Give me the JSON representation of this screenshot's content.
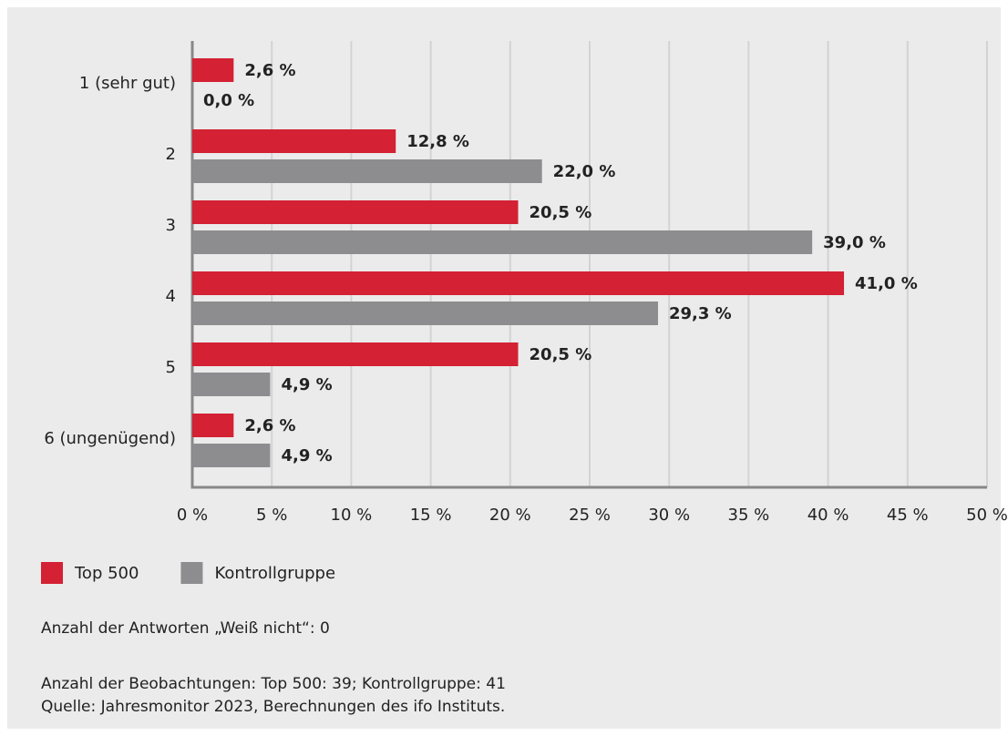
{
  "chart_data": {
    "type": "bar",
    "orientation": "horizontal",
    "categories": [
      "1 (sehr gut)",
      "2",
      "3",
      "4",
      "5",
      "6 (ungenügend)"
    ],
    "series": [
      {
        "name": "Top 500",
        "color": "#d42134",
        "values": [
          2.6,
          12.8,
          20.5,
          41.0,
          20.5,
          2.6
        ],
        "value_labels": [
          "2,6 %",
          "12,8 %",
          "20,5 %",
          "41,0 %",
          "20,5 %",
          "2,6 %"
        ]
      },
      {
        "name": "Kontrollgruppe",
        "color": "#8d8d8f",
        "values": [
          0.0,
          22.0,
          39.0,
          29.3,
          4.9,
          4.9
        ],
        "value_labels": [
          "0,0 %",
          "22,0 %",
          "39,0 %",
          "29,3 %",
          "4,9 %",
          "4,9 %"
        ]
      }
    ],
    "xlim": [
      0,
      50
    ],
    "xticks": [
      {
        "value": 0,
        "label": "0 %"
      },
      {
        "value": 5,
        "label": "5 %"
      },
      {
        "value": 10,
        "label": "10 %"
      },
      {
        "value": 15,
        "label": "15 %"
      },
      {
        "value": 20,
        "label": "20 %"
      },
      {
        "value": 25,
        "label": "25 %"
      },
      {
        "value": 30,
        "label": "30 %"
      },
      {
        "value": 35,
        "label": "35 %"
      },
      {
        "value": 40,
        "label": "40 %"
      },
      {
        "value": 45,
        "label": "45 %"
      },
      {
        "value": 50,
        "label": "50 %"
      }
    ],
    "grid": true,
    "notes": [
      "Anzahl der Antworten „Weiß nicht“: 0",
      "Anzahl der Beobachtungen: Top 500: 39; Kontrollgruppe: 41",
      "Quelle: Jahresmonitor 2023, Berechnungen des ifo Instituts."
    ]
  }
}
